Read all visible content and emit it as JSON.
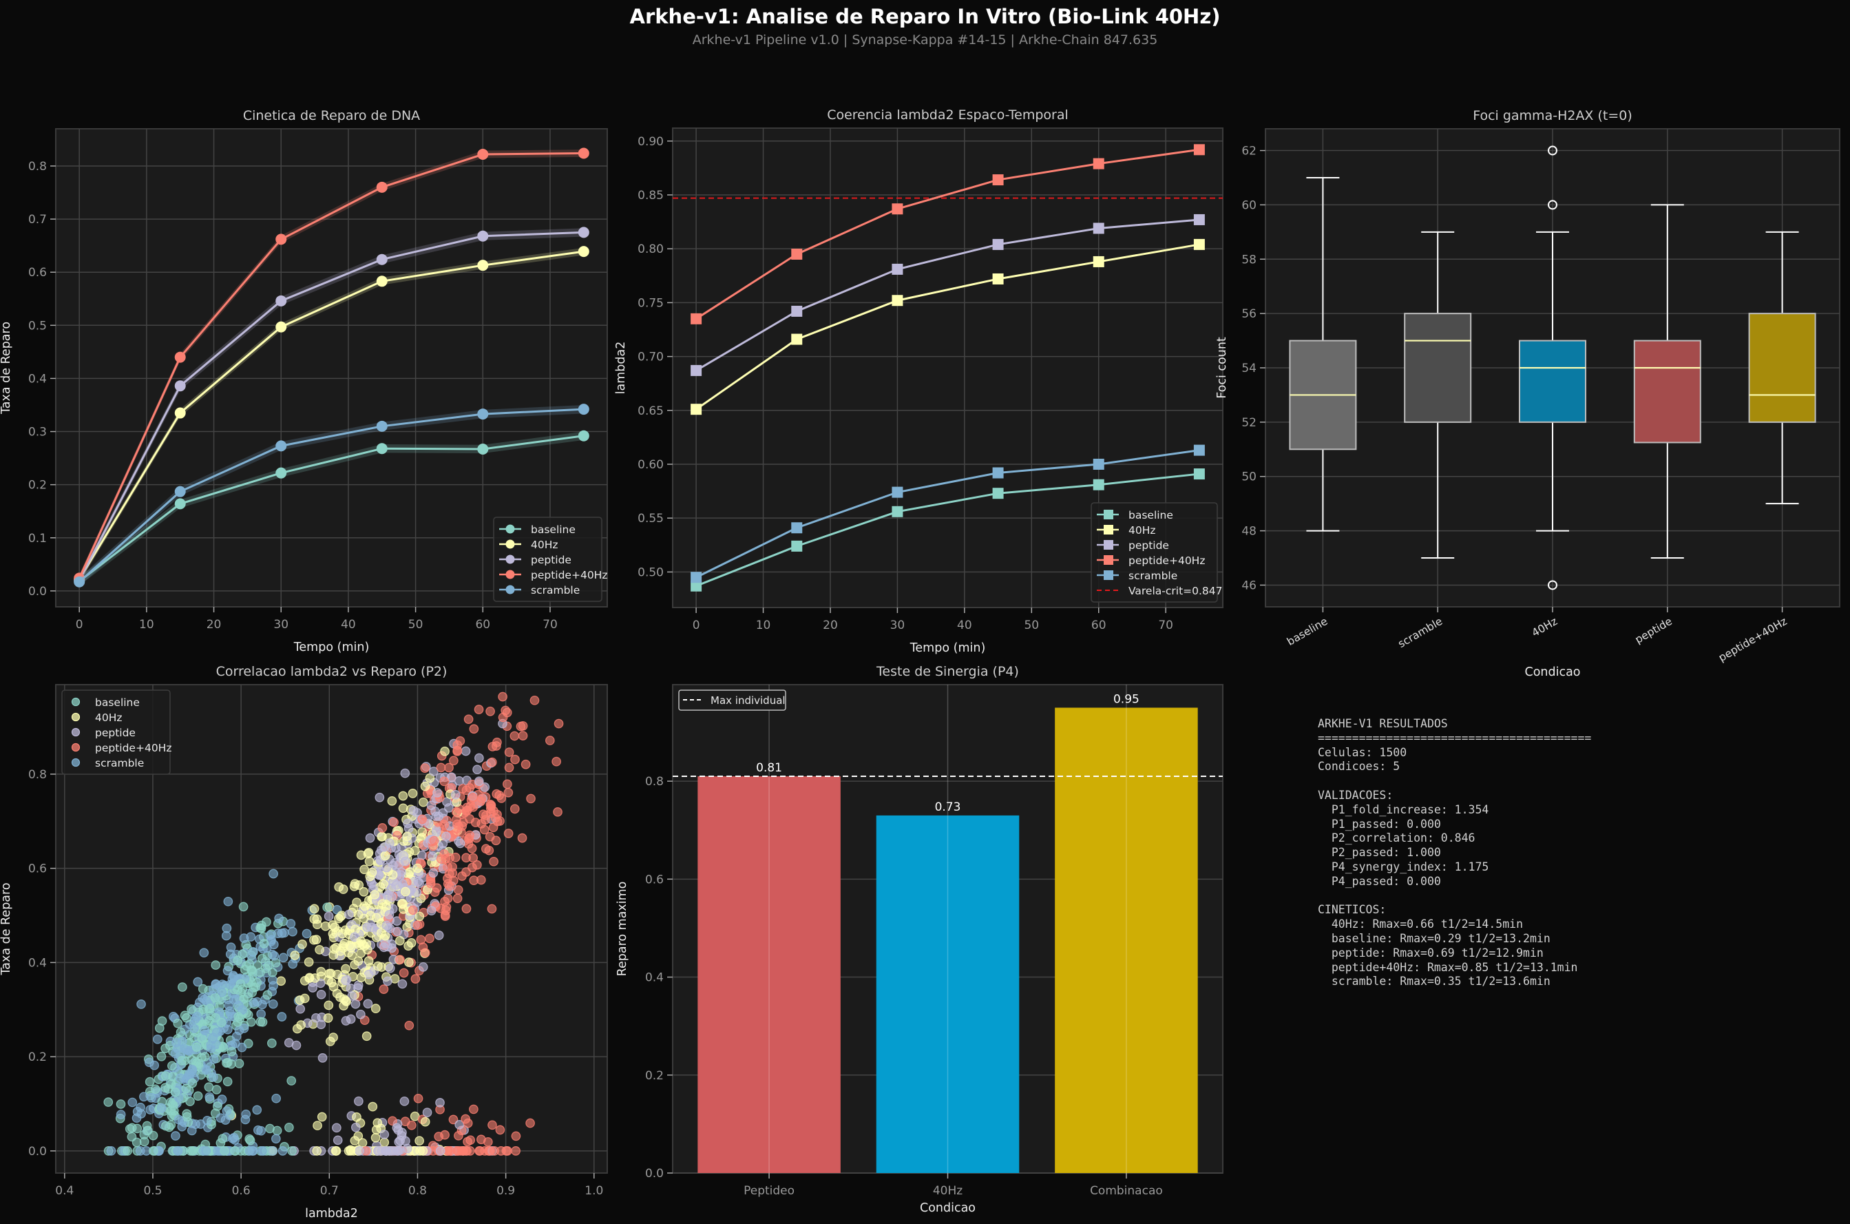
{
  "figure": {
    "title": "Arkhe-v1: Analise de Reparo In Vitro (Bio-Link 40Hz)",
    "subtitle": "Arkhe-v1 Pipeline v1.0 | Synapse-Kappa #14-15 | Arkhe-Chain 847.635"
  },
  "colors": {
    "background": "#0a0a0a",
    "axes_bg": "#1b1b1b",
    "grid": "#444444",
    "baseline": "#8dd3c7",
    "40Hz": "#ffffb3",
    "peptide": "#bebada",
    "peptide+40Hz": "#fb8072",
    "scramble": "#80b1d3",
    "crit_line": "#e31a1c"
  },
  "chart_data": [
    {
      "id": "kinetics",
      "type": "line",
      "title": "Cinetica de Reparo de DNA",
      "xlabel": "Tempo (min)",
      "ylabel": "Taxa de Reparo",
      "xlim": [
        -3.5,
        78.5
      ],
      "ylim": [
        -0.03,
        0.87
      ],
      "xticks": [
        0,
        10,
        20,
        30,
        40,
        50,
        60,
        70
      ],
      "yticks": [
        0.0,
        0.1,
        0.2,
        0.3,
        0.4,
        0.5,
        0.6,
        0.7,
        0.8
      ],
      "tick_format": 1,
      "marker": "circle",
      "grid": true,
      "legend": "lower right",
      "x": [
        0,
        15,
        30,
        45,
        60,
        75
      ],
      "series": [
        {
          "name": "baseline",
          "color": "#8dd3c7",
          "values": [
            0.018,
            0.164,
            0.222,
            0.268,
            0.267,
            0.292
          ],
          "band": 0.008
        },
        {
          "name": "40Hz",
          "color": "#ffffb3",
          "values": [
            0.022,
            0.335,
            0.497,
            0.583,
            0.613,
            0.639
          ],
          "band": 0.007
        },
        {
          "name": "peptide",
          "color": "#bebada",
          "values": [
            0.02,
            0.386,
            0.546,
            0.624,
            0.668,
            0.675
          ],
          "band": 0.008
        },
        {
          "name": "peptide+40Hz",
          "color": "#fb8072",
          "values": [
            0.024,
            0.44,
            0.662,
            0.76,
            0.822,
            0.824
          ],
          "band": 0.007
        },
        {
          "name": "scramble",
          "color": "#80b1d3",
          "values": [
            0.017,
            0.187,
            0.273,
            0.31,
            0.333,
            0.342
          ],
          "band": 0.008
        }
      ]
    },
    {
      "id": "lambda2",
      "type": "line",
      "title": "Coerencia lambda2 Espaco-Temporal",
      "xlabel": "Tempo (min)",
      "ylabel": "lambda2",
      "xlim": [
        -3.5,
        78.5
      ],
      "ylim": [
        0.467,
        0.912
      ],
      "xticks": [
        0,
        10,
        20,
        30,
        40,
        50,
        60,
        70
      ],
      "yticks": [
        0.5,
        0.55,
        0.6,
        0.65,
        0.7,
        0.75,
        0.8,
        0.85,
        0.9
      ],
      "tick_format": 2,
      "marker": "square",
      "grid": true,
      "legend": "lower right",
      "x": [
        0,
        15,
        30,
        45,
        60,
        75
      ],
      "series": [
        {
          "name": "baseline",
          "color": "#8dd3c7",
          "values": [
            0.487,
            0.524,
            0.556,
            0.573,
            0.581,
            0.591
          ]
        },
        {
          "name": "40Hz",
          "color": "#ffffb3",
          "values": [
            0.651,
            0.716,
            0.752,
            0.772,
            0.788,
            0.804
          ]
        },
        {
          "name": "peptide",
          "color": "#bebada",
          "values": [
            0.687,
            0.742,
            0.781,
            0.804,
            0.819,
            0.827
          ]
        },
        {
          "name": "peptide+40Hz",
          "color": "#fb8072",
          "values": [
            0.735,
            0.795,
            0.837,
            0.864,
            0.879,
            0.892
          ]
        },
        {
          "name": "scramble",
          "color": "#80b1d3",
          "values": [
            0.495,
            0.541,
            0.574,
            0.592,
            0.6,
            0.613
          ]
        }
      ],
      "hline": {
        "label": "Varela-crit=0.847",
        "value": 0.847,
        "color": "#e31a1c"
      }
    },
    {
      "id": "foci",
      "type": "box",
      "title": "Foci gamma-H2AX (t=0)",
      "xlabel": "Condicao",
      "ylabel": "Foci count",
      "ylim": [
        45.2,
        62.8
      ],
      "yticks": [
        46,
        48,
        50,
        52,
        54,
        56,
        58,
        60,
        62
      ],
      "grid": true,
      "categories": [
        "baseline",
        "scramble",
        "40Hz",
        "peptide",
        "peptide+40Hz"
      ],
      "boxes": [
        {
          "name": "baseline",
          "q1": 51,
          "median": 53,
          "q3": 55,
          "whisker_low": 48,
          "whisker_high": 61,
          "outliers": [],
          "color": "#6a6a6a"
        },
        {
          "name": "scramble",
          "q1": 52,
          "median": 55,
          "q3": 56,
          "whisker_low": 47,
          "whisker_high": 59,
          "outliers": [],
          "color": "#4d4d4d"
        },
        {
          "name": "40Hz",
          "q1": 52,
          "median": 54,
          "q3": 55,
          "whisker_low": 48,
          "whisker_high": 59,
          "outliers": [
            46,
            60,
            62
          ],
          "color": "#0a7aa3"
        },
        {
          "name": "peptide",
          "q1": 51.25,
          "median": 54,
          "q3": 55,
          "whisker_low": 47,
          "whisker_high": 60,
          "outliers": [],
          "color": "#a44c4c"
        },
        {
          "name": "peptide+40Hz",
          "q1": 52,
          "median": 53,
          "q3": 56,
          "whisker_low": 49,
          "whisker_high": 59,
          "outliers": [],
          "color": "#a68b0b"
        }
      ]
    },
    {
      "id": "correlation",
      "type": "scatter",
      "title": "Correlacao lambda2 vs Reparo (P2)",
      "xlabel": "lambda2",
      "ylabel": "Taxa de Reparo",
      "xlim": [
        0.39,
        1.015
      ],
      "ylim": [
        -0.047,
        0.99
      ],
      "xticks": [
        0.4,
        0.5,
        0.6,
        0.7,
        0.8,
        0.9,
        1.0
      ],
      "yticks": [
        0.0,
        0.2,
        0.4,
        0.6,
        0.8
      ],
      "tick_format": 1,
      "grid": true,
      "legend": "upper left",
      "total_points": 1500,
      "series": [
        {
          "name": "baseline",
          "color": "#8dd3c7",
          "n": 300,
          "center": [
            0.56,
            0.24
          ],
          "spread": [
            0.042,
            0.095
          ],
          "zero_fraction": 0.1
        },
        {
          "name": "40Hz",
          "color": "#ffffb3",
          "n": 300,
          "center": [
            0.75,
            0.5
          ],
          "spread": [
            0.04,
            0.12
          ],
          "zero_fraction": 0.1
        },
        {
          "name": "peptide",
          "color": "#bebada",
          "n": 300,
          "center": [
            0.78,
            0.57
          ],
          "spread": [
            0.04,
            0.12
          ],
          "zero_fraction": 0.1
        },
        {
          "name": "peptide+40Hz",
          "color": "#fb8072",
          "n": 300,
          "center": [
            0.84,
            0.67
          ],
          "spread": [
            0.042,
            0.14
          ],
          "zero_fraction": 0.1
        },
        {
          "name": "scramble",
          "color": "#80b1d3",
          "n": 300,
          "center": [
            0.57,
            0.27
          ],
          "spread": [
            0.042,
            0.09
          ],
          "zero_fraction": 0.1
        }
      ]
    },
    {
      "id": "synergy",
      "type": "bar",
      "title": "Teste de Sinergia (P4)",
      "xlabel": "Condicao",
      "ylabel": "Reparo maximo",
      "ylim": [
        0,
        0.997
      ],
      "yticks": [
        0.0,
        0.2,
        0.4,
        0.6,
        0.8
      ],
      "tick_format": 1,
      "grid": true,
      "legend": "upper left",
      "categories": [
        "Peptideo",
        "40Hz",
        "Combinacao"
      ],
      "values": [
        0.81,
        0.73,
        0.95
      ],
      "value_labels": [
        "0.81",
        "0.73",
        "0.95"
      ],
      "colors": [
        "#d15b5c",
        "#059dcf",
        "#cfae05"
      ],
      "hline": {
        "label": "Max individual",
        "value": 0.81,
        "color": "#ffffff"
      }
    }
  ],
  "results_panel": {
    "lines": [
      "ARKHE-V1 RESULTADOS",
      "========================================",
      "Celulas: 1500",
      "Condicoes: 5",
      "",
      "VALIDACOES:",
      "  P1_fold_increase: 1.354",
      "  P1_passed: 0.000",
      "  P2_correlation: 0.846",
      "  P2_passed: 1.000",
      "  P4_synergy_index: 1.175",
      "  P4_passed: 0.000",
      "",
      "CINETICOS:",
      "  40Hz: Rmax=0.66 t1/2=14.5min",
      "  baseline: Rmax=0.29 t1/2=13.2min",
      "  peptide: Rmax=0.69 t1/2=12.9min",
      "  peptide+40Hz: Rmax=0.85 t1/2=13.1min",
      "  scramble: Rmax=0.35 t1/2=13.6min"
    ]
  }
}
